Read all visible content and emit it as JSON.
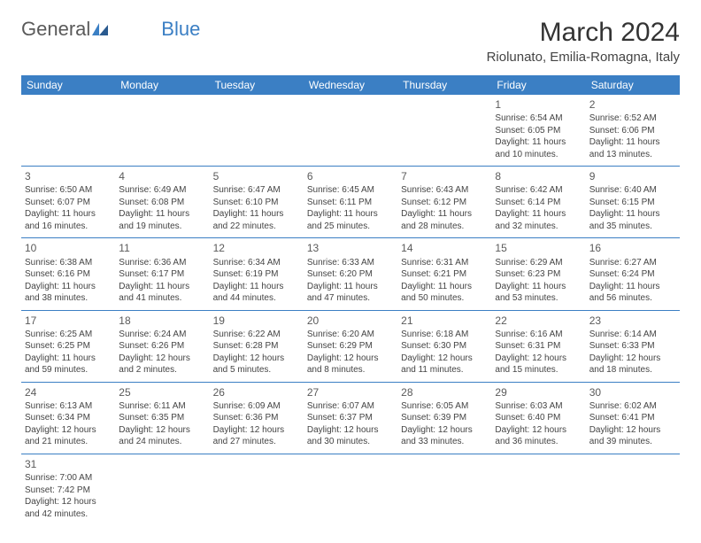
{
  "logo": {
    "general": "General",
    "blue": "Blue"
  },
  "title": "March 2024",
  "location": "Riolunato, Emilia-Romagna, Italy",
  "weekdays": [
    "Sunday",
    "Monday",
    "Tuesday",
    "Wednesday",
    "Thursday",
    "Friday",
    "Saturday"
  ],
  "colors": {
    "header_bg": "#3b7fc4",
    "header_text": "#ffffff",
    "border": "#3b7fc4",
    "text": "#444444",
    "title_text": "#333333"
  },
  "weeks": [
    [
      null,
      null,
      null,
      null,
      null,
      {
        "n": "1",
        "sunrise": "Sunrise: 6:54 AM",
        "sunset": "Sunset: 6:05 PM",
        "daylight1": "Daylight: 11 hours",
        "daylight2": "and 10 minutes."
      },
      {
        "n": "2",
        "sunrise": "Sunrise: 6:52 AM",
        "sunset": "Sunset: 6:06 PM",
        "daylight1": "Daylight: 11 hours",
        "daylight2": "and 13 minutes."
      }
    ],
    [
      {
        "n": "3",
        "sunrise": "Sunrise: 6:50 AM",
        "sunset": "Sunset: 6:07 PM",
        "daylight1": "Daylight: 11 hours",
        "daylight2": "and 16 minutes."
      },
      {
        "n": "4",
        "sunrise": "Sunrise: 6:49 AM",
        "sunset": "Sunset: 6:08 PM",
        "daylight1": "Daylight: 11 hours",
        "daylight2": "and 19 minutes."
      },
      {
        "n": "5",
        "sunrise": "Sunrise: 6:47 AM",
        "sunset": "Sunset: 6:10 PM",
        "daylight1": "Daylight: 11 hours",
        "daylight2": "and 22 minutes."
      },
      {
        "n": "6",
        "sunrise": "Sunrise: 6:45 AM",
        "sunset": "Sunset: 6:11 PM",
        "daylight1": "Daylight: 11 hours",
        "daylight2": "and 25 minutes."
      },
      {
        "n": "7",
        "sunrise": "Sunrise: 6:43 AM",
        "sunset": "Sunset: 6:12 PM",
        "daylight1": "Daylight: 11 hours",
        "daylight2": "and 28 minutes."
      },
      {
        "n": "8",
        "sunrise": "Sunrise: 6:42 AM",
        "sunset": "Sunset: 6:14 PM",
        "daylight1": "Daylight: 11 hours",
        "daylight2": "and 32 minutes."
      },
      {
        "n": "9",
        "sunrise": "Sunrise: 6:40 AM",
        "sunset": "Sunset: 6:15 PM",
        "daylight1": "Daylight: 11 hours",
        "daylight2": "and 35 minutes."
      }
    ],
    [
      {
        "n": "10",
        "sunrise": "Sunrise: 6:38 AM",
        "sunset": "Sunset: 6:16 PM",
        "daylight1": "Daylight: 11 hours",
        "daylight2": "and 38 minutes."
      },
      {
        "n": "11",
        "sunrise": "Sunrise: 6:36 AM",
        "sunset": "Sunset: 6:17 PM",
        "daylight1": "Daylight: 11 hours",
        "daylight2": "and 41 minutes."
      },
      {
        "n": "12",
        "sunrise": "Sunrise: 6:34 AM",
        "sunset": "Sunset: 6:19 PM",
        "daylight1": "Daylight: 11 hours",
        "daylight2": "and 44 minutes."
      },
      {
        "n": "13",
        "sunrise": "Sunrise: 6:33 AM",
        "sunset": "Sunset: 6:20 PM",
        "daylight1": "Daylight: 11 hours",
        "daylight2": "and 47 minutes."
      },
      {
        "n": "14",
        "sunrise": "Sunrise: 6:31 AM",
        "sunset": "Sunset: 6:21 PM",
        "daylight1": "Daylight: 11 hours",
        "daylight2": "and 50 minutes."
      },
      {
        "n": "15",
        "sunrise": "Sunrise: 6:29 AM",
        "sunset": "Sunset: 6:23 PM",
        "daylight1": "Daylight: 11 hours",
        "daylight2": "and 53 minutes."
      },
      {
        "n": "16",
        "sunrise": "Sunrise: 6:27 AM",
        "sunset": "Sunset: 6:24 PM",
        "daylight1": "Daylight: 11 hours",
        "daylight2": "and 56 minutes."
      }
    ],
    [
      {
        "n": "17",
        "sunrise": "Sunrise: 6:25 AM",
        "sunset": "Sunset: 6:25 PM",
        "daylight1": "Daylight: 11 hours",
        "daylight2": "and 59 minutes."
      },
      {
        "n": "18",
        "sunrise": "Sunrise: 6:24 AM",
        "sunset": "Sunset: 6:26 PM",
        "daylight1": "Daylight: 12 hours",
        "daylight2": "and 2 minutes."
      },
      {
        "n": "19",
        "sunrise": "Sunrise: 6:22 AM",
        "sunset": "Sunset: 6:28 PM",
        "daylight1": "Daylight: 12 hours",
        "daylight2": "and 5 minutes."
      },
      {
        "n": "20",
        "sunrise": "Sunrise: 6:20 AM",
        "sunset": "Sunset: 6:29 PM",
        "daylight1": "Daylight: 12 hours",
        "daylight2": "and 8 minutes."
      },
      {
        "n": "21",
        "sunrise": "Sunrise: 6:18 AM",
        "sunset": "Sunset: 6:30 PM",
        "daylight1": "Daylight: 12 hours",
        "daylight2": "and 11 minutes."
      },
      {
        "n": "22",
        "sunrise": "Sunrise: 6:16 AM",
        "sunset": "Sunset: 6:31 PM",
        "daylight1": "Daylight: 12 hours",
        "daylight2": "and 15 minutes."
      },
      {
        "n": "23",
        "sunrise": "Sunrise: 6:14 AM",
        "sunset": "Sunset: 6:33 PM",
        "daylight1": "Daylight: 12 hours",
        "daylight2": "and 18 minutes."
      }
    ],
    [
      {
        "n": "24",
        "sunrise": "Sunrise: 6:13 AM",
        "sunset": "Sunset: 6:34 PM",
        "daylight1": "Daylight: 12 hours",
        "daylight2": "and 21 minutes."
      },
      {
        "n": "25",
        "sunrise": "Sunrise: 6:11 AM",
        "sunset": "Sunset: 6:35 PM",
        "daylight1": "Daylight: 12 hours",
        "daylight2": "and 24 minutes."
      },
      {
        "n": "26",
        "sunrise": "Sunrise: 6:09 AM",
        "sunset": "Sunset: 6:36 PM",
        "daylight1": "Daylight: 12 hours",
        "daylight2": "and 27 minutes."
      },
      {
        "n": "27",
        "sunrise": "Sunrise: 6:07 AM",
        "sunset": "Sunset: 6:37 PM",
        "daylight1": "Daylight: 12 hours",
        "daylight2": "and 30 minutes."
      },
      {
        "n": "28",
        "sunrise": "Sunrise: 6:05 AM",
        "sunset": "Sunset: 6:39 PM",
        "daylight1": "Daylight: 12 hours",
        "daylight2": "and 33 minutes."
      },
      {
        "n": "29",
        "sunrise": "Sunrise: 6:03 AM",
        "sunset": "Sunset: 6:40 PM",
        "daylight1": "Daylight: 12 hours",
        "daylight2": "and 36 minutes."
      },
      {
        "n": "30",
        "sunrise": "Sunrise: 6:02 AM",
        "sunset": "Sunset: 6:41 PM",
        "daylight1": "Daylight: 12 hours",
        "daylight2": "and 39 minutes."
      }
    ],
    [
      {
        "n": "31",
        "sunrise": "Sunrise: 7:00 AM",
        "sunset": "Sunset: 7:42 PM",
        "daylight1": "Daylight: 12 hours",
        "daylight2": "and 42 minutes."
      },
      null,
      null,
      null,
      null,
      null,
      null
    ]
  ]
}
